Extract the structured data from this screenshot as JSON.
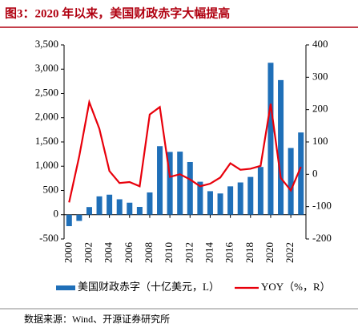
{
  "chart_data": {
    "type": "bar+line",
    "title": "图3：2020 年以来，美国财政赤字大幅提高",
    "source": "数据来源：Wind、开源证券研究所",
    "categories": [
      "2000",
      null,
      "2002",
      null,
      "2004",
      null,
      "2006",
      null,
      "2008",
      null,
      "2010",
      null,
      "2012",
      null,
      "2014",
      null,
      "2016",
      null,
      "2018",
      null,
      "2020",
      null,
      "2022",
      null
    ],
    "series": [
      {
        "name": "美国财政赤字（十亿美元，L）",
        "type": "bar",
        "color": "#1f6fb8",
        "axis": "y",
        "values": [
          -236,
          -128,
          158,
          378,
          413,
          318,
          248,
          161,
          459,
          1413,
          1294,
          1300,
          1087,
          680,
          485,
          438,
          585,
          665,
          779,
          984,
          3132,
          2775,
          1375,
          1695
        ]
      },
      {
        "name": "YOY（%，R）",
        "type": "line",
        "color": "#e8000b",
        "axis": "y2",
        "values": [
          -87,
          55,
          223,
          141,
          10,
          -27,
          -24,
          -37,
          185,
          208,
          -8,
          0,
          -16,
          -37,
          -29,
          -10,
          34,
          14,
          17,
          26,
          218,
          -11,
          -50,
          23
        ]
      }
    ],
    "ylim": [
      -500,
      3500
    ],
    "yticks": [
      -500,
      0,
      500,
      {
        "value": 1000,
        "label": "1,000"
      },
      {
        "value": 1500,
        "label": "1,500"
      },
      {
        "value": 2000,
        "label": "2,000"
      },
      {
        "value": 2500,
        "label": "2,500"
      },
      {
        "value": 3000,
        "label": "3,000"
      },
      {
        "value": 3500,
        "label": "3,500"
      }
    ],
    "y2lim": [
      -200,
      400
    ],
    "y2ticks": [
      -200,
      -100,
      0,
      100,
      200,
      300,
      400
    ],
    "legend": "bottom"
  }
}
